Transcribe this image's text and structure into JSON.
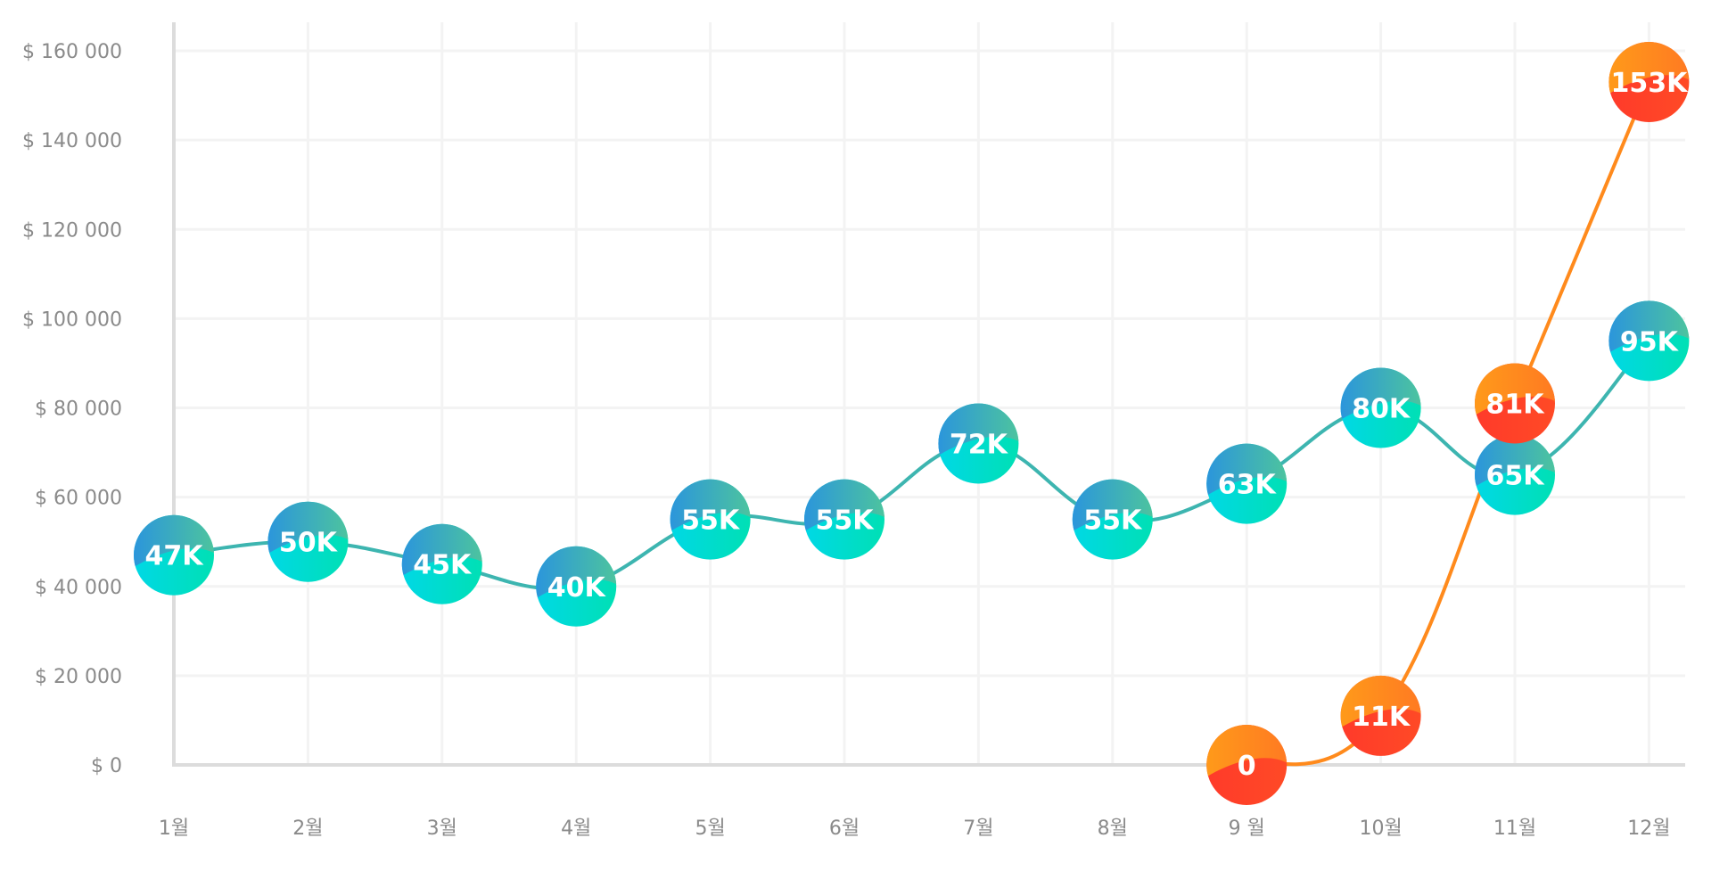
{
  "chart_data": {
    "type": "line",
    "title": "",
    "xlabel": "",
    "ylabel": "",
    "categories": [
      "1월",
      "2월",
      "3월",
      "4월",
      "5월",
      "6월",
      "7월",
      "8월",
      "9 월",
      "10월",
      "11월",
      "12월"
    ],
    "ylim": [
      0,
      160000
    ],
    "yticks": [
      0,
      20000,
      40000,
      60000,
      80000,
      100000,
      120000,
      140000,
      160000
    ],
    "ytick_labels": [
      "$ 0",
      "$ 20 000",
      "$ 40 000",
      "$ 60 000",
      "$ 80 000",
      "$ 100 000",
      "$ 120 000",
      "$ 140 000",
      "$ 160 000"
    ],
    "grid": true,
    "series": [
      {
        "name": "teal",
        "color": "#3db5b0",
        "values": [
          47000,
          50000,
          45000,
          40000,
          55000,
          55000,
          72000,
          55000,
          63000,
          80000,
          65000,
          95000
        ],
        "labels": [
          "47K",
          "50K",
          "45K",
          "40K",
          "55K",
          "55K",
          "72K",
          "55K",
          "63K",
          "80K",
          "65K",
          "95K"
        ],
        "gradient": [
          "#2b95dc",
          "#4dc49e",
          "#00d8e6",
          "#00e0b4"
        ]
      },
      {
        "name": "orange",
        "color": "#ff8a1c",
        "values": [
          null,
          null,
          null,
          null,
          null,
          null,
          null,
          null,
          0,
          11000,
          81000,
          153000
        ],
        "labels": [
          null,
          null,
          null,
          null,
          null,
          null,
          null,
          null,
          "0",
          "11K",
          "81K",
          "153K"
        ],
        "gradient": [
          "#ff9a1a",
          "#ff7a22",
          "#ff3a2a",
          "#ff4a26"
        ]
      }
    ]
  }
}
